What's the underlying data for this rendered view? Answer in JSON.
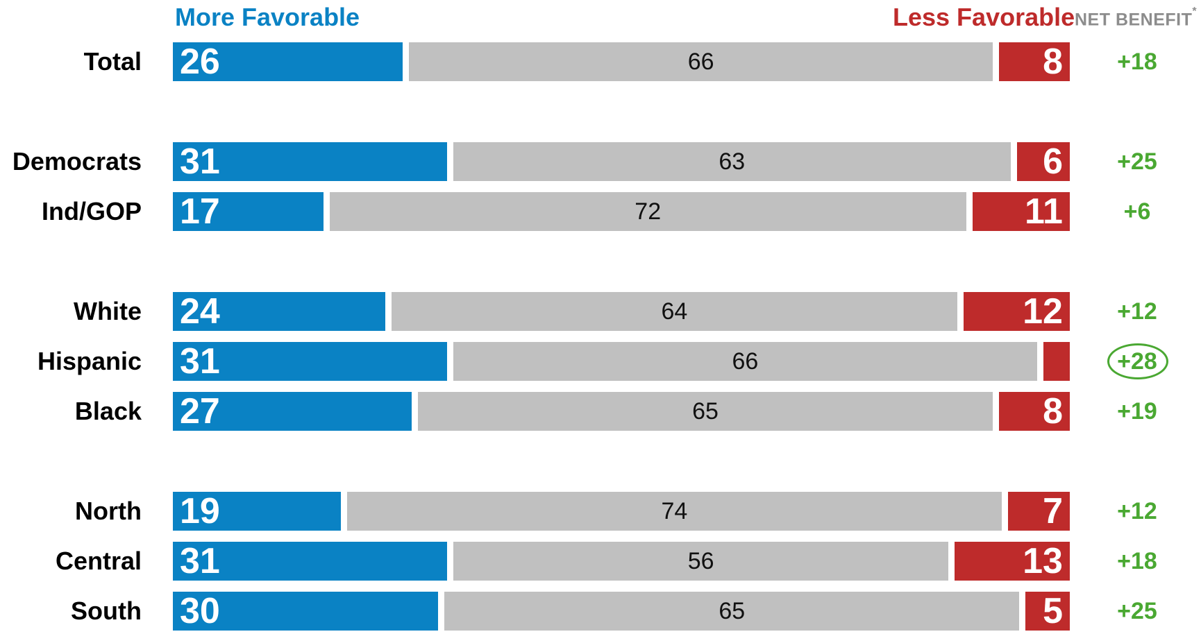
{
  "chart_data": {
    "type": "bar",
    "stacked": true,
    "orientation": "horizontal",
    "headers": {
      "more": "More Favorable",
      "less": "Less Favorable",
      "net": "NET BENEFIT",
      "net_mark": "*"
    },
    "categories": [
      "Total",
      "Democrats",
      "Ind/GOP",
      "White",
      "Hispanic",
      "Black",
      "North",
      "Central",
      "South"
    ],
    "groups": [
      [
        0
      ],
      [
        1,
        2
      ],
      [
        3,
        4,
        5
      ],
      [
        6,
        7,
        8
      ]
    ],
    "series": [
      {
        "name": "More Favorable",
        "values": [
          26,
          31,
          17,
          24,
          31,
          27,
          19,
          31,
          30
        ],
        "color": "#0a82c4"
      },
      {
        "values": [
          66,
          63,
          72,
          64,
          66,
          65,
          74,
          56,
          65
        ],
        "color": "#c0c0c0"
      },
      {
        "name": "Less Favorable",
        "values": [
          8,
          6,
          11,
          12,
          3,
          8,
          7,
          13,
          5
        ],
        "color": "#be2b2b"
      }
    ],
    "less_labels": [
      "8",
      "6",
      "11",
      "12",
      "",
      "8",
      "7",
      "13",
      "5"
    ],
    "net_benefit": [
      "+18",
      "+25",
      "+6",
      "+12",
      "+28",
      "+19",
      "+12",
      "+18",
      "+25"
    ],
    "highlighted_index": 4,
    "colors": {
      "more": "#0a82c4",
      "neutral": "#c0c0c0",
      "less": "#be2b2b",
      "net": "#4aa832",
      "net_header": "#8c8c8c",
      "label": "#000000"
    }
  }
}
